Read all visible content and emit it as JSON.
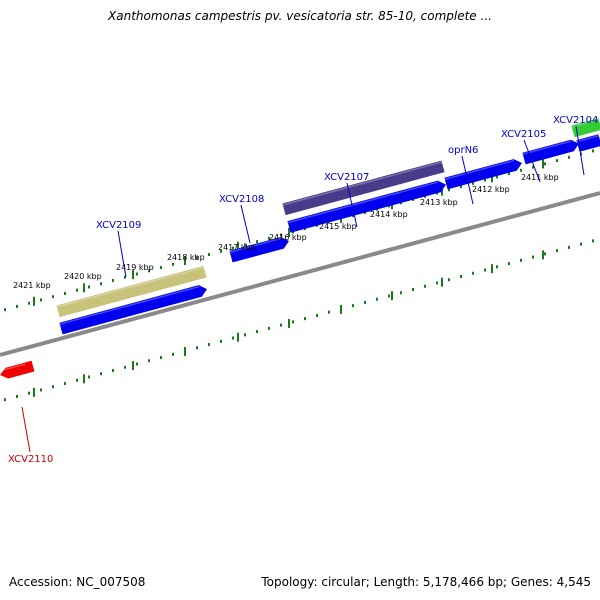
{
  "title": "Xanthomonas campestris pv. vesicatoria str. 85-10, complete ...",
  "footer": {
    "accession": "Accession: NC_007508",
    "topology": "Topology: circular; Length: 5,178,466 bp; Genes: 4,545"
  },
  "colors": {
    "ruler_ticks": "#1a7a1a",
    "backbone": "#8a8a8a",
    "gene_forward": "#0000ee",
    "gene_reverse": "#ee0000",
    "gene_tan": "#c9c27a",
    "gene_purple": "#4a3a8a",
    "gene_green": "#33cc33",
    "label_forward": "#0000cc",
    "label_reverse": "#cc0000"
  },
  "ruler_labels": [
    "2421 kbp",
    "2420 kbp",
    "2419 kbp",
    "2418 kbp",
    "2417 kbp",
    "2416 kbp",
    "2415 kbp",
    "2414 kbp",
    "2413 kbp",
    "2412 kbp",
    "2411 kbp"
  ],
  "gene_labels": [
    {
      "text": "XCV2109",
      "strand": "forward"
    },
    {
      "text": "XCV2108",
      "strand": "forward"
    },
    {
      "text": "XCV2107",
      "strand": "forward"
    },
    {
      "text": "oprN6",
      "strand": "forward"
    },
    {
      "text": "XCV2105",
      "strand": "forward"
    },
    {
      "text": "XCV2104",
      "strand": "forward"
    },
    {
      "text": "XCV2110",
      "strand": "reverse"
    }
  ]
}
